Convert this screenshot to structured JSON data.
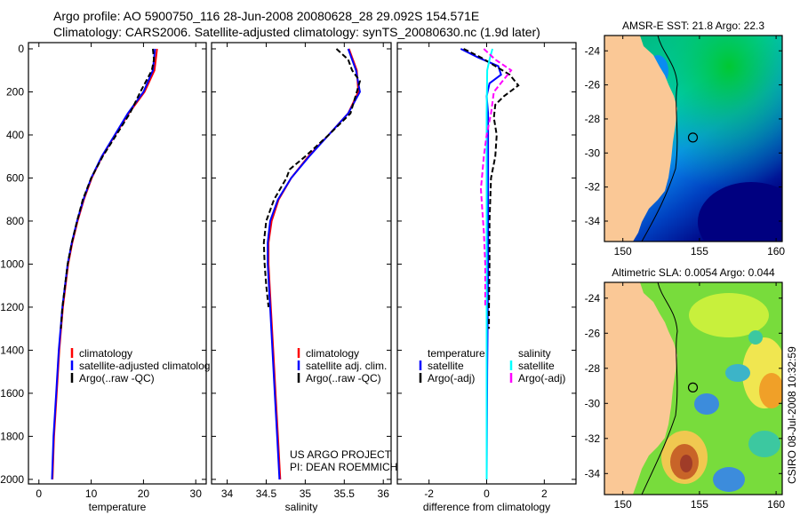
{
  "header": {
    "line1": "Argo profile: AO 5900750_116 28-Jun-2008 20080628_28 29.092S 154.571E",
    "line2": "Climatology: CARS2006. Satellite-adjusted climatology: synTS_20080630.nc (1.9d later)"
  },
  "credit": {
    "project": "US ARGO PROJECT",
    "pi": "PI: DEAN ROEMMICH",
    "stamp": "CSIRO 08-Jul-2008 10:32:59"
  },
  "chart_data": [
    {
      "type": "line",
      "xlabel": "temperature",
      "ylabel": "",
      "xlim": [
        -2,
        32
      ],
      "ylim": [
        2050,
        0
      ],
      "xticks": [
        0,
        10,
        20,
        30
      ],
      "yticks": [
        0,
        200,
        400,
        600,
        800,
        1000,
        1200,
        1400,
        1600,
        1800,
        2000
      ],
      "legend": [
        "climatology",
        "satellite-adjusted climatolog",
        "Argo(..raw -QC)"
      ],
      "series": [
        {
          "name": "climatology",
          "color": "#ff0000",
          "dashed": false,
          "depth": [
            0,
            100,
            200,
            300,
            400,
            500,
            600,
            700,
            800,
            900,
            1000,
            1200,
            1400,
            1600,
            1800,
            2000
          ],
          "values": [
            22.6,
            22.1,
            20.2,
            17.2,
            14.6,
            12.1,
            10.1,
            8.6,
            7.4,
            6.4,
            5.6,
            4.6,
            3.9,
            3.4,
            2.9,
            2.6
          ]
        },
        {
          "name": "satellite-adjusted climatology",
          "color": "#0000ff",
          "dashed": false,
          "depth": [
            0,
            100,
            200,
            300,
            400,
            500,
            600,
            700,
            800,
            900,
            1000,
            1200,
            1400,
            1600,
            1800,
            2000
          ],
          "values": [
            22.2,
            21.8,
            20.0,
            17.0,
            14.5,
            12.0,
            10.0,
            8.5,
            7.3,
            6.3,
            5.5,
            4.5,
            3.8,
            3.3,
            2.8,
            2.5
          ]
        },
        {
          "name": "Argo(..raw -QC)",
          "color": "#000000",
          "dashed": true,
          "depth": [
            0,
            50,
            100,
            200,
            300,
            400,
            500,
            600,
            700,
            800,
            900,
            1000,
            1200,
            1300
          ],
          "values": [
            21.8,
            22.0,
            21.6,
            19.4,
            17.4,
            14.8,
            12.2,
            10.0,
            8.4,
            7.3,
            6.3,
            5.5,
            4.5,
            4.2
          ]
        }
      ]
    },
    {
      "type": "line",
      "xlabel": "salinity",
      "xlim": [
        33.8,
        36.1
      ],
      "ylim": [
        2050,
        0
      ],
      "xticks": [
        34,
        34.5,
        35,
        35.5,
        36
      ],
      "legend": [
        "climatology",
        "satellite adj. clim.",
        "Argo(..raw -QC)"
      ],
      "series": [
        {
          "name": "climatology",
          "color": "#ff0000",
          "dashed": false,
          "depth": [
            0,
            100,
            200,
            300,
            400,
            500,
            600,
            700,
            800,
            900,
            1000,
            1200,
            1400,
            1600,
            1800,
            2000
          ],
          "values": [
            35.56,
            35.66,
            35.68,
            35.55,
            35.3,
            35.04,
            34.82,
            34.66,
            34.57,
            34.53,
            34.53,
            34.56,
            34.59,
            34.62,
            34.65,
            34.68
          ]
        },
        {
          "name": "satellite adj. clim.",
          "color": "#0000ff",
          "dashed": false,
          "depth": [
            0,
            100,
            200,
            300,
            400,
            500,
            600,
            700,
            800,
            900,
            1000,
            1200,
            1400,
            1600,
            1800,
            2000
          ],
          "values": [
            35.55,
            35.65,
            35.7,
            35.55,
            35.3,
            35.05,
            34.82,
            34.65,
            34.55,
            34.52,
            34.52,
            34.55,
            34.58,
            34.61,
            34.64,
            34.67
          ]
        },
        {
          "name": "Argo(..raw -QC)",
          "color": "#000000",
          "dashed": true,
          "depth": [
            0,
            50,
            100,
            150,
            200,
            250,
            300,
            400,
            500,
            560,
            600,
            700,
            800,
            900,
            1000,
            1100,
            1200
          ],
          "values": [
            35.4,
            35.55,
            35.6,
            35.7,
            35.66,
            35.62,
            35.58,
            35.3,
            35.0,
            34.8,
            34.76,
            34.6,
            34.5,
            34.47,
            34.48,
            34.5,
            34.53
          ]
        }
      ]
    },
    {
      "type": "line",
      "xlabel": "difference from climatology",
      "xlim": [
        -3.1,
        3.1
      ],
      "ylim": [
        2050,
        0
      ],
      "xticks": [
        -2,
        0,
        2
      ],
      "legend": {
        "temperature": [
          "temperature",
          "satellite",
          "Argo(-adj)"
        ],
        "salinity": [
          "salinity",
          "satellite",
          "Argo(-adj)"
        ]
      },
      "series": [
        {
          "name": "temperature satellite",
          "color": "#0000ff",
          "dashed": false,
          "depth": [
            0,
            40,
            80,
            120,
            160,
            220,
            300,
            500,
            800,
            1000,
            1200,
            1500,
            2000
          ],
          "values": [
            -0.9,
            -0.3,
            0.4,
            0.5,
            0.1,
            0.0,
            0.05,
            0.05,
            0.05,
            0.05,
            0.04,
            0.02,
            0.0
          ]
        },
        {
          "name": "temperature Argo(-adj)",
          "color": "#000000",
          "dashed": true,
          "depth": [
            0,
            40,
            80,
            120,
            170,
            220,
            260,
            320,
            400,
            500,
            600,
            800,
            1000,
            1200,
            1300
          ],
          "values": [
            -0.8,
            -0.2,
            0.3,
            0.8,
            1.1,
            0.6,
            0.3,
            0.25,
            0.35,
            0.3,
            0.15,
            0.1,
            0.1,
            0.08,
            0.08
          ]
        },
        {
          "name": "salinity satellite",
          "color": "#00ffff",
          "dashed": false,
          "depth": [
            0,
            50,
            100,
            300,
            800,
            1400,
            2000
          ],
          "values": [
            0.2,
            0.1,
            0.02,
            0.0,
            0.0,
            0.0,
            0.0
          ]
        },
        {
          "name": "salinity Argo(-adj)",
          "color": "#ff00ff",
          "dashed": true,
          "depth": [
            0,
            50,
            100,
            150,
            200,
            300,
            400,
            500,
            580,
            650,
            750,
            850,
            1000,
            1200
          ],
          "values": [
            -0.1,
            0.3,
            0.85,
            0.55,
            0.25,
            0.15,
            0.0,
            -0.1,
            -0.15,
            -0.2,
            -0.15,
            -0.1,
            -0.05,
            -0.05
          ]
        }
      ]
    },
    {
      "type": "heatmap",
      "title": "AMSR-E SST: 21.8 Argo: 22.3",
      "xlim": [
        148.8,
        160.4
      ],
      "ylim": [
        -35.2,
        -23.1
      ],
      "xticks": [
        150,
        155,
        160
      ],
      "yticks": [
        -24,
        -26,
        -28,
        -30,
        -32,
        -34
      ],
      "argo_location": {
        "lon": 154.571,
        "lat": -29.092
      }
    },
    {
      "type": "heatmap",
      "title": "Altimetric SLA: 0.0054 Argo: 0.044",
      "xlim": [
        148.8,
        160.4
      ],
      "ylim": [
        -35.2,
        -23.1
      ],
      "xticks": [
        150,
        155,
        160
      ],
      "yticks": [
        -24,
        -26,
        -28,
        -30,
        -32,
        -34
      ],
      "argo_location": {
        "lon": 154.571,
        "lat": -29.092
      }
    }
  ]
}
